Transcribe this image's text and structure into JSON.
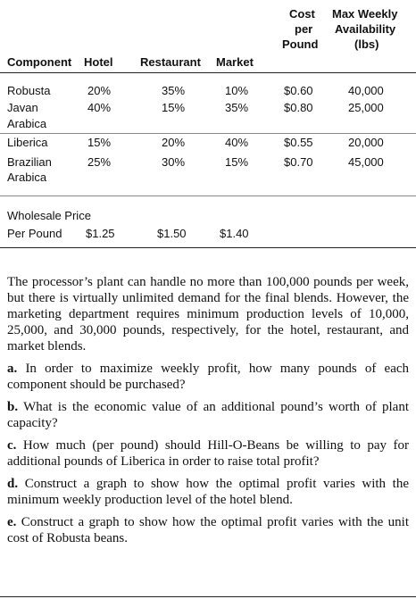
{
  "table": {
    "headers": {
      "cost_line1": "Cost",
      "cost_line2": "per",
      "cost_line3": "Pound",
      "avail_line1": "Max Weekly",
      "avail_line2": "Availability",
      "avail_line3": "(lbs)",
      "component": "Component",
      "hotel": "Hotel",
      "restaurant": "Restaurant",
      "market": "Market"
    },
    "rows": [
      {
        "name1": "Robusta",
        "name2": "",
        "hotel": "20%",
        "restaurant": "35%",
        "market": "10%",
        "cost": "$0.60",
        "avail": "40,000"
      },
      {
        "name1": "Javan",
        "name2": "Arabica",
        "hotel": "40%",
        "restaurant": "15%",
        "market": "35%",
        "cost": "$0.80",
        "avail": "25,000"
      },
      {
        "name1": "Liberica",
        "name2": "",
        "hotel": "15%",
        "restaurant": "20%",
        "market": "40%",
        "cost": "$0.55",
        "avail": "20,000"
      },
      {
        "name1": "Brazilian",
        "name2": "Arabica",
        "hotel": "25%",
        "restaurant": "30%",
        "market": "15%",
        "cost": "$0.70",
        "avail": "45,000"
      }
    ],
    "wholesale_line1": "Wholesale Price",
    "wholesale_line2": "Per Pound",
    "wholesale_hotel": "$1.25",
    "wholesale_restaurant": "$1.50",
    "wholesale_market": "$1.40"
  },
  "text": {
    "paragraph": "The processor’s plant can handle no more than 100,000 pounds per week, but there is virtually unlimited demand for the final blends. However, the marketing department requires minimum production levels of 10,000, 25,000, and 30,000 pounds, respectively, for the hotel, restaurant, and market blends.",
    "questions": [
      {
        "label": "a.",
        "text": "In order to maximize weekly profit, how many pounds of each component should be purchased?"
      },
      {
        "label": "b.",
        "text": "What is the economic value of an additional pound’s worth of plant capacity?"
      },
      {
        "label": "c.",
        "text": "How much (per pound) should Hill-O-Beans be willing to pay for additional pounds of Liberica in order to raise total profit?"
      },
      {
        "label": "d.",
        "text": "Construct a graph to show how the optimal profit varies with the minimum weekly production level of the hotel blend."
      },
      {
        "label": "e.",
        "text": "Construct a graph to show how the optimal profit varies with the unit cost of Robusta beans."
      }
    ]
  }
}
